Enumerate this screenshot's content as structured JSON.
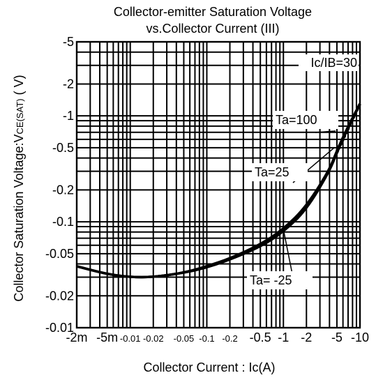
{
  "chart_data": {
    "type": "line",
    "title_line1": "Collector-emitter Saturation Voltage",
    "title_line2": "vs.Collector Current (III)",
    "xlabel": "Collector Current : Ic(A)",
    "ylabel_prefix": "Collector  Saturation Voltage:V",
    "ylabel_sub": "CE(SAT)",
    "ylabel_suffix": " ( V)",
    "x_scale": "log",
    "y_scale": "log",
    "xlim": [
      0.002,
      10
    ],
    "ylim": [
      0.01,
      5
    ],
    "grid": true,
    "x_ticks": [
      {
        "value": 0.002,
        "label": "-2m",
        "small": false
      },
      {
        "value": 0.005,
        "label": "-5m",
        "small": false
      },
      {
        "value": 0.01,
        "label": "-0.01",
        "small": true
      },
      {
        "value": 0.02,
        "label": "-0.02",
        "small": true
      },
      {
        "value": 0.05,
        "label": "-0.05",
        "small": true
      },
      {
        "value": 0.1,
        "label": "-0.1",
        "small": true
      },
      {
        "value": 0.2,
        "label": "-0.2",
        "small": true
      },
      {
        "value": 0.5,
        "label": "-0.5",
        "small": false
      },
      {
        "value": 1,
        "label": "-1",
        "small": false
      },
      {
        "value": 2,
        "label": "-2",
        "small": false
      },
      {
        "value": 5,
        "label": "-5",
        "small": false
      },
      {
        "value": 10,
        "label": "-10",
        "small": false
      }
    ],
    "y_ticks": [
      {
        "value": 5,
        "label": "-5"
      },
      {
        "value": 2,
        "label": "-2"
      },
      {
        "value": 1,
        "label": "-1"
      },
      {
        "value": 0.5,
        "label": "-0.5"
      },
      {
        "value": 0.2,
        "label": "-0.2"
      },
      {
        "value": 0.1,
        "label": "-0.1"
      },
      {
        "value": 0.05,
        "label": "-0.05"
      },
      {
        "value": 0.02,
        "label": "-0.02"
      },
      {
        "value": 0.01,
        "label": "-0.01"
      }
    ],
    "condition_label": "Ic/IB=30",
    "series": [
      {
        "name": "Ta=100",
        "x": [
          0.002,
          0.005,
          0.01,
          0.02,
          0.05,
          0.1,
          0.2,
          0.5,
          1,
          2,
          4,
          5,
          7,
          10
        ],
        "y": [
          0.038,
          0.032,
          0.03,
          0.03,
          0.033,
          0.037,
          0.044,
          0.058,
          0.08,
          0.13,
          0.3,
          0.45,
          0.78,
          1.3
        ]
      },
      {
        "name": "Ta=25",
        "x": [
          0.002,
          0.005,
          0.01,
          0.02,
          0.05,
          0.1,
          0.2,
          0.5,
          1,
          2,
          4,
          5,
          7,
          10
        ],
        "y": [
          0.038,
          0.032,
          0.03,
          0.03,
          0.033,
          0.038,
          0.045,
          0.061,
          0.085,
          0.14,
          0.31,
          0.47,
          0.8,
          1.3
        ]
      },
      {
        "name": "Ta= -25",
        "x": [
          0.002,
          0.005,
          0.01,
          0.02,
          0.05,
          0.1,
          0.2,
          0.5,
          1,
          2,
          4,
          5,
          7,
          10
        ],
        "y": [
          0.038,
          0.032,
          0.03,
          0.03,
          0.033,
          0.037,
          0.044,
          0.058,
          0.083,
          0.135,
          0.3,
          0.46,
          0.78,
          1.3
        ]
      }
    ],
    "annotations": [
      {
        "text": "Ta=100",
        "points_to": {
          "x": 4.8,
          "y": 0.72
        }
      },
      {
        "text": "Ta=25",
        "points_to": {
          "x": 4.6,
          "y": 0.5
        }
      },
      {
        "text": "Ta= -25",
        "points_to": {
          "x": 1.0,
          "y": 0.085
        }
      }
    ]
  }
}
